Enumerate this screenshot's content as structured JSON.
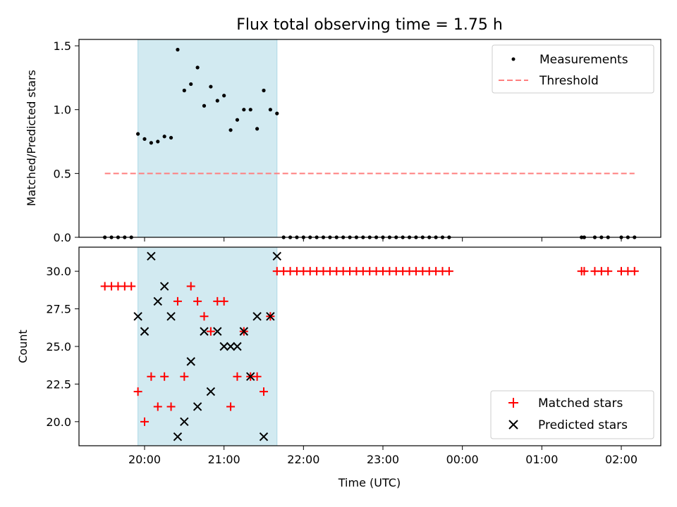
{
  "chart_data": [
    {
      "type": "scatter",
      "title": "Flux total observing time = 1.75 h",
      "xlabel": "",
      "ylabel": "Matched/Predicted stars",
      "ylim": [
        0,
        1.55
      ],
      "yticks": [
        "0.0",
        "0.5",
        "1.0",
        "1.5"
      ],
      "shaded_interval": [
        "19:55",
        "21:40"
      ],
      "shade_color": "#add8e6",
      "legend": {
        "position": "top-right",
        "entries": [
          "Measurements",
          "Threshold"
        ]
      },
      "threshold": {
        "name": "Threshold",
        "value": 0.5,
        "x_range": [
          "19:30",
          "02:10"
        ],
        "color": "#ff7f7f",
        "style": "dashed"
      },
      "series": [
        {
          "name": "Measurements",
          "color": "#000000",
          "marker": "dot",
          "points": [
            [
              "19:30",
              0
            ],
            [
              "19:35",
              0
            ],
            [
              "19:40",
              0
            ],
            [
              "19:45",
              0
            ],
            [
              "19:50",
              0
            ],
            [
              "19:55",
              0.81
            ],
            [
              "20:00",
              0.77
            ],
            [
              "20:05",
              0.74
            ],
            [
              "20:10",
              0.75
            ],
            [
              "20:15",
              0.79
            ],
            [
              "20:20",
              0.78
            ],
            [
              "20:25",
              1.47
            ],
            [
              "20:30",
              1.15
            ],
            [
              "20:35",
              1.2
            ],
            [
              "20:40",
              1.33
            ],
            [
              "20:45",
              1.03
            ],
            [
              "20:50",
              1.18
            ],
            [
              "20:55",
              1.07
            ],
            [
              "21:00",
              1.11
            ],
            [
              "21:05",
              0.84
            ],
            [
              "21:10",
              0.92
            ],
            [
              "21:15",
              1.0
            ],
            [
              "21:20",
              1.0
            ],
            [
              "21:25",
              0.85
            ],
            [
              "21:30",
              1.15
            ],
            [
              "21:35",
              1.0
            ],
            [
              "21:40",
              0.97
            ],
            [
              "21:45",
              0
            ],
            [
              "21:50",
              0
            ],
            [
              "21:55",
              0
            ],
            [
              "22:00",
              0
            ],
            [
              "22:05",
              0
            ],
            [
              "22:10",
              0
            ],
            [
              "22:15",
              0
            ],
            [
              "22:20",
              0
            ],
            [
              "22:25",
              0
            ],
            [
              "22:30",
              0
            ],
            [
              "22:35",
              0
            ],
            [
              "22:40",
              0
            ],
            [
              "22:45",
              0
            ],
            [
              "22:50",
              0
            ],
            [
              "22:55",
              0
            ],
            [
              "23:00",
              0
            ],
            [
              "23:05",
              0
            ],
            [
              "23:10",
              0
            ],
            [
              "23:15",
              0
            ],
            [
              "23:20",
              0
            ],
            [
              "23:25",
              0
            ],
            [
              "23:30",
              0
            ],
            [
              "23:35",
              0
            ],
            [
              "23:40",
              0
            ],
            [
              "23:45",
              0
            ],
            [
              "23:50",
              0
            ],
            [
              "01:30",
              0
            ],
            [
              "01:32",
              0
            ],
            [
              "01:40",
              0
            ],
            [
              "01:45",
              0
            ],
            [
              "01:50",
              0
            ],
            [
              "02:00",
              0
            ],
            [
              "02:05",
              0
            ],
            [
              "02:10",
              0
            ]
          ]
        }
      ]
    },
    {
      "type": "scatter",
      "title": "",
      "xlabel": "Time (UTC)",
      "ylabel": "Count",
      "ylim": [
        18.4,
        31.6
      ],
      "yticks": [
        "20.0",
        "22.5",
        "25.0",
        "27.5",
        "30.0"
      ],
      "xticks": [
        "20:00",
        "21:00",
        "22:00",
        "23:00",
        "00:00",
        "01:00",
        "02:00"
      ],
      "shaded_interval": [
        "19:55",
        "21:40"
      ],
      "shade_color": "#add8e6",
      "legend": {
        "position": "bottom-right",
        "entries": [
          "Matched stars",
          "Predicted stars"
        ]
      },
      "series": [
        {
          "name": "Matched stars",
          "color": "#ff0000",
          "marker": "plus",
          "points": [
            [
              "19:30",
              29
            ],
            [
              "19:35",
              29
            ],
            [
              "19:40",
              29
            ],
            [
              "19:45",
              29
            ],
            [
              "19:50",
              29
            ],
            [
              "19:55",
              22
            ],
            [
              "20:00",
              20
            ],
            [
              "20:05",
              23
            ],
            [
              "20:10",
              21
            ],
            [
              "20:15",
              23
            ],
            [
              "20:20",
              21
            ],
            [
              "20:25",
              28
            ],
            [
              "20:30",
              23
            ],
            [
              "20:35",
              29
            ],
            [
              "20:40",
              28
            ],
            [
              "20:45",
              27
            ],
            [
              "20:50",
              26
            ],
            [
              "20:55",
              28
            ],
            [
              "21:00",
              28
            ],
            [
              "21:05",
              21
            ],
            [
              "21:10",
              23
            ],
            [
              "21:15",
              26
            ],
            [
              "21:20",
              23
            ],
            [
              "21:25",
              23
            ],
            [
              "21:30",
              22
            ],
            [
              "21:35",
              27
            ],
            [
              "21:40",
              30
            ],
            [
              "21:45",
              30
            ],
            [
              "21:50",
              30
            ],
            [
              "21:55",
              30
            ],
            [
              "22:00",
              30
            ],
            [
              "22:05",
              30
            ],
            [
              "22:10",
              30
            ],
            [
              "22:15",
              30
            ],
            [
              "22:20",
              30
            ],
            [
              "22:25",
              30
            ],
            [
              "22:30",
              30
            ],
            [
              "22:35",
              30
            ],
            [
              "22:40",
              30
            ],
            [
              "22:45",
              30
            ],
            [
              "22:50",
              30
            ],
            [
              "22:55",
              30
            ],
            [
              "23:00",
              30
            ],
            [
              "23:05",
              30
            ],
            [
              "23:10",
              30
            ],
            [
              "23:15",
              30
            ],
            [
              "23:20",
              30
            ],
            [
              "23:25",
              30
            ],
            [
              "23:30",
              30
            ],
            [
              "23:35",
              30
            ],
            [
              "23:40",
              30
            ],
            [
              "23:45",
              30
            ],
            [
              "23:50",
              30
            ],
            [
              "01:30",
              30
            ],
            [
              "01:32",
              30
            ],
            [
              "01:40",
              30
            ],
            [
              "01:45",
              30
            ],
            [
              "01:50",
              30
            ],
            [
              "02:00",
              30
            ],
            [
              "02:05",
              30
            ],
            [
              "02:10",
              30
            ]
          ]
        },
        {
          "name": "Predicted stars",
          "color": "#000000",
          "marker": "x",
          "points": [
            [
              "19:55",
              27
            ],
            [
              "20:00",
              26
            ],
            [
              "20:05",
              31
            ],
            [
              "20:10",
              28
            ],
            [
              "20:15",
              29
            ],
            [
              "20:20",
              27
            ],
            [
              "20:25",
              19
            ],
            [
              "20:30",
              20
            ],
            [
              "20:35",
              24
            ],
            [
              "20:40",
              21
            ],
            [
              "20:45",
              26
            ],
            [
              "20:50",
              22
            ],
            [
              "20:55",
              26
            ],
            [
              "21:00",
              25
            ],
            [
              "21:05",
              25
            ],
            [
              "21:10",
              25
            ],
            [
              "21:15",
              26
            ],
            [
              "21:20",
              23
            ],
            [
              "21:25",
              27
            ],
            [
              "21:30",
              19
            ],
            [
              "21:35",
              27
            ],
            [
              "21:40",
              31
            ]
          ]
        }
      ]
    }
  ]
}
